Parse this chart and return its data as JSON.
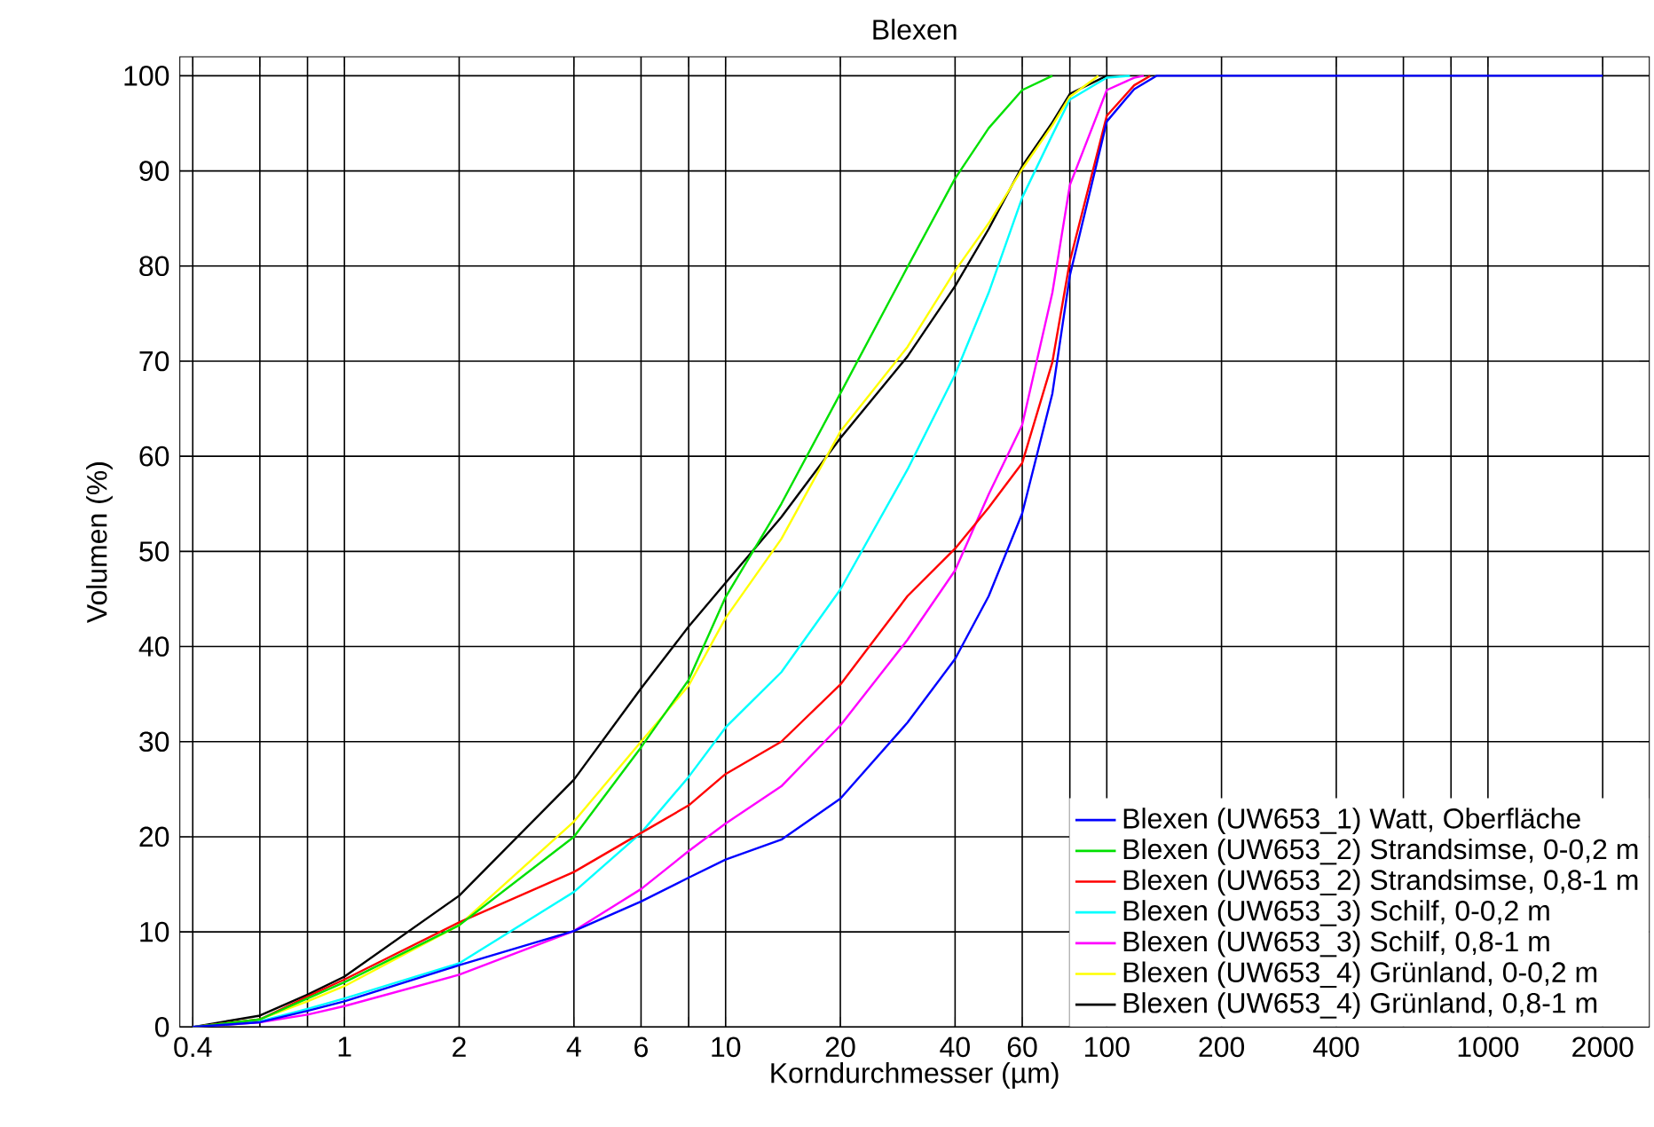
{
  "chart_data": {
    "type": "line",
    "title": "Blexen",
    "xlabel": "Korndurchmesser (µm)",
    "ylabel": "Volumen (%)",
    "log": "x",
    "grid": true,
    "legend": "bottom right",
    "marker": "none",
    "line_style": "solid",
    "xlim": [
      0.37,
      2650
    ],
    "ylim": [
      0,
      102
    ],
    "xticks": [
      0.4,
      {
        "value": 0.6,
        "label": null
      },
      {
        "value": 0.8,
        "label": null
      },
      1,
      2,
      4,
      6,
      {
        "value": 8,
        "label": null
      },
      10,
      20,
      40,
      60,
      {
        "value": 80,
        "label": null
      },
      100,
      200,
      400,
      {
        "value": 600,
        "label": null
      },
      {
        "value": 800,
        "label": null
      },
      1000,
      2000
    ],
    "yticks": [
      0,
      10,
      20,
      30,
      40,
      50,
      60,
      70,
      80,
      90,
      100
    ],
    "x": [
      0.4,
      0.6,
      0.8,
      1,
      2,
      4,
      6,
      8,
      10,
      14,
      20,
      30,
      40,
      49,
      60,
      72,
      80,
      100,
      118,
      135,
      2000
    ],
    "series": [
      {
        "name": "Blexen (UW653_1) Watt, Oberfläche",
        "color": "#0000ff",
        "values": [
          0,
          0.5,
          1.7,
          2.7,
          6.5,
          10.1,
          13.2,
          15.7,
          17.6,
          19.7,
          24,
          32,
          38.7,
          45.3,
          54,
          66.6,
          79,
          95.2,
          98.6,
          100,
          100
        ]
      },
      {
        "name": "Blexen (UW653_2) Strandsimse, 0-0,2 m",
        "color": "#00e000",
        "x": [
          0.4,
          0.6,
          0.8,
          1,
          2,
          4,
          6,
          8,
          10,
          14,
          20,
          30,
          40,
          49,
          60,
          72
        ],
        "values": [
          0,
          0.8,
          3.0,
          4.7,
          10.7,
          20,
          29.4,
          36.5,
          45.2,
          55,
          66.6,
          79.9,
          89.2,
          94.5,
          98.5,
          100
        ]
      },
      {
        "name": "Blexen (UW653_2) Strandsimse, 0,8-1 m",
        "color": "#ff0000",
        "x": [
          0.4,
          0.6,
          0.8,
          1,
          2,
          4,
          6,
          8,
          10,
          14,
          20,
          30,
          40,
          49,
          60,
          72,
          80,
          100,
          118,
          130
        ],
        "values": [
          0,
          0.8,
          3.2,
          5.0,
          11,
          16.3,
          20.4,
          23.3,
          26.6,
          30,
          36,
          45.3,
          50.3,
          54.6,
          59.3,
          69.9,
          80.5,
          95.8,
          99,
          100
        ]
      },
      {
        "name": "Blexen (UW653_3) Schilf, 0-0,2 m",
        "color": "#00ffff",
        "x": [
          0.4,
          0.6,
          0.8,
          1,
          2,
          4,
          6,
          8,
          10,
          14,
          20,
          30,
          40,
          49,
          60,
          72,
          80,
          100,
          115
        ],
        "values": [
          0,
          0.6,
          1.9,
          3.0,
          6.7,
          14.2,
          20.4,
          26.3,
          31.5,
          37.3,
          46,
          58.6,
          68.6,
          77.2,
          87.2,
          93.8,
          97.5,
          99.8,
          100
        ]
      },
      {
        "name": "Blexen (UW653_3) Schilf, 0,8-1 m",
        "color": "#ff00ff",
        "x": [
          0.4,
          0.6,
          0.8,
          1,
          2,
          4,
          6,
          8,
          10,
          14,
          20,
          30,
          40,
          49,
          60,
          72,
          80,
          100,
          118,
          125
        ],
        "values": [
          0,
          0.5,
          1.3,
          2.2,
          5.5,
          10.1,
          14.5,
          18.5,
          21.4,
          25.3,
          31.7,
          40.7,
          48,
          56,
          63.3,
          77.2,
          88.5,
          98.5,
          99.8,
          100
        ]
      },
      {
        "name": "Blexen (UW653_4) Grünland, 0-0,2 m",
        "color": "#ffff00",
        "x": [
          0.4,
          0.6,
          0.8,
          1,
          2,
          4,
          6,
          8,
          10,
          14,
          20,
          30,
          40,
          49,
          60,
          72,
          80,
          95
        ],
        "values": [
          0,
          0.8,
          2.7,
          4.3,
          10.7,
          21.6,
          30,
          35.9,
          43,
          51.3,
          62.6,
          71.5,
          79.5,
          84.5,
          90.2,
          94.8,
          97.8,
          100
        ]
      },
      {
        "name": "Blexen (UW653_4) Grünland, 0,8-1 m",
        "color": "#000000",
        "x": [
          0.4,
          0.6,
          0.8,
          1,
          2,
          4,
          6,
          8,
          10,
          14,
          20,
          30,
          40,
          49,
          60,
          72,
          80,
          100
        ],
        "values": [
          0,
          1.2,
          3.4,
          5.3,
          13.8,
          26,
          35.6,
          42.1,
          46.7,
          53.6,
          61.9,
          70.5,
          77.9,
          83.9,
          90.5,
          95.1,
          98.1,
          100
        ]
      }
    ]
  }
}
